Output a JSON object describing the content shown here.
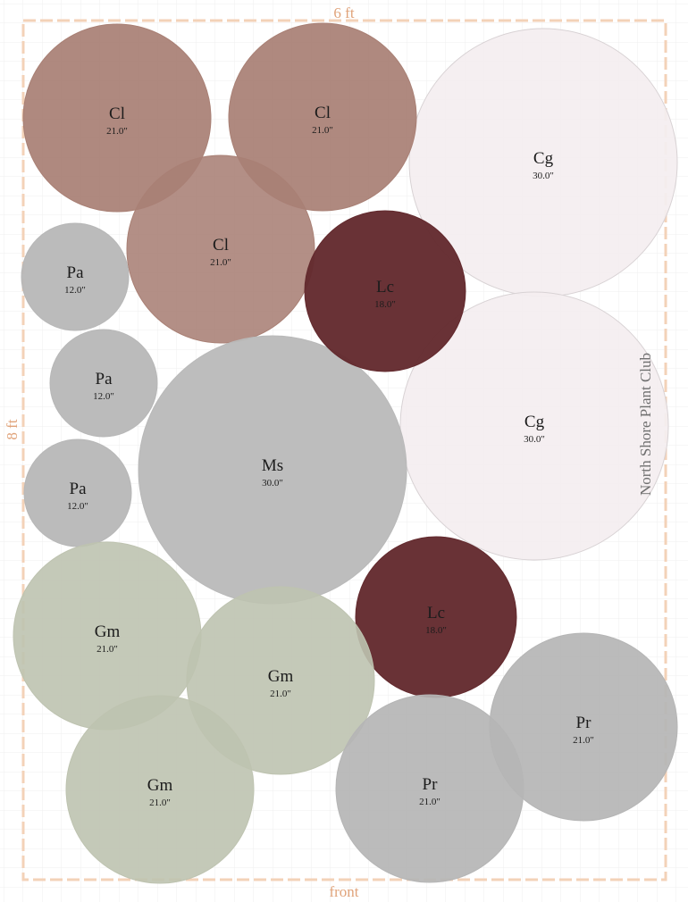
{
  "dimensions": {
    "top": "6 ft",
    "side": "8 ft",
    "bottom": "front"
  },
  "club_name": "North Shore Plant Club",
  "colors": {
    "border": "#f3d2b8",
    "dimension_text": "#e0a37a",
    "grid": "#efefef"
  },
  "plants": [
    {
      "code": "Cg",
      "size": "30.0\"",
      "color": "#f4eef0",
      "stroke": "#d8d2d4",
      "opacity": 0.92
    },
    {
      "code": "Cg",
      "size": "30.0\"",
      "color": "#f4eef0",
      "stroke": "#d8d2d4",
      "opacity": 0.92
    },
    {
      "code": "Cl",
      "size": "21.0\"",
      "color": "#a98075",
      "stroke": "#a98075",
      "opacity": 0.93
    },
    {
      "code": "Cl",
      "size": "21.0\"",
      "color": "#a98075",
      "stroke": "#a98075",
      "opacity": 0.93
    },
    {
      "code": "Cl",
      "size": "21.0\"",
      "color": "#a98075",
      "stroke": "#a98075",
      "opacity": 0.88
    },
    {
      "code": "Pa",
      "size": "12.0\"",
      "color": "#b7b7b7",
      "stroke": "#b7b7b7",
      "opacity": 0.95
    },
    {
      "code": "Pa",
      "size": "12.0\"",
      "color": "#b7b7b7",
      "stroke": "#b7b7b7",
      "opacity": 0.95
    },
    {
      "code": "Pa",
      "size": "12.0\"",
      "color": "#b7b7b7",
      "stroke": "#b7b7b7",
      "opacity": 0.95
    },
    {
      "code": "Ms",
      "size": "30.0\"",
      "color": "#b9b9b9",
      "stroke": "#b9b9b9",
      "opacity": 0.95
    },
    {
      "code": "Lc",
      "size": "18.0\"",
      "color": "#632a2e",
      "stroke": "#632a2e",
      "opacity": 0.96
    },
    {
      "code": "Lc",
      "size": "18.0\"",
      "color": "#632a2e",
      "stroke": "#632a2e",
      "opacity": 0.96
    },
    {
      "code": "Gm",
      "size": "21.0\"",
      "color": "#bec3b0",
      "stroke": "#bec3b0",
      "opacity": 0.9
    },
    {
      "code": "Gm",
      "size": "21.0\"",
      "color": "#bec3b0",
      "stroke": "#bec3b0",
      "opacity": 0.9
    },
    {
      "code": "Gm",
      "size": "21.0\"",
      "color": "#bec3b0",
      "stroke": "#bec3b0",
      "opacity": 0.9
    },
    {
      "code": "Pr",
      "size": "21.0\"",
      "color": "#b5b5b5",
      "stroke": "#b5b5b5",
      "opacity": 0.92
    },
    {
      "code": "Pr",
      "size": "21.0\"",
      "color": "#b5b5b5",
      "stroke": "#b5b5b5",
      "opacity": 0.92
    }
  ]
}
